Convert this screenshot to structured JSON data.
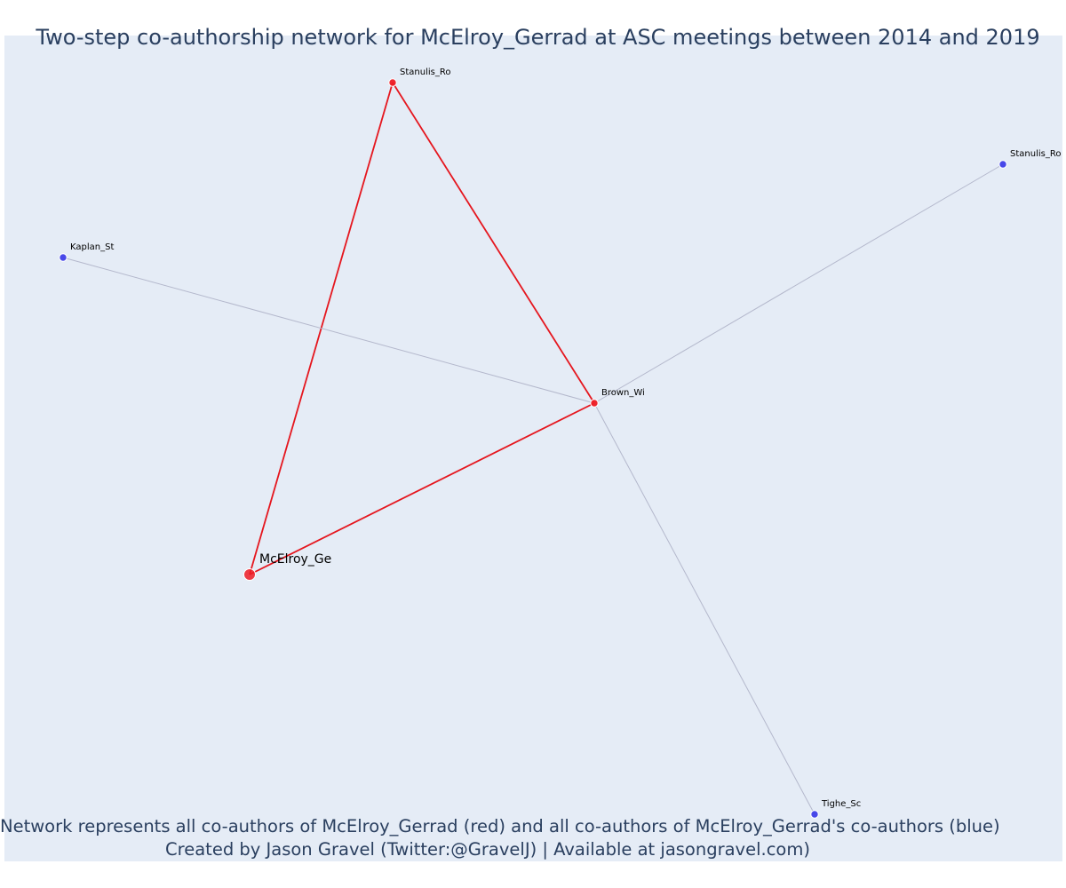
{
  "title": "Two-step co-authorship network for McElroy_Gerrad at ASC meetings between 2014 and 2019",
  "caption": {
    "line1": "Network represents all co-authors of McElroy_Gerrad (red) and all co-authors of McElroy_Gerrad's co-authors (blue)",
    "line2": "Created by Jason Gravel (Twitter:@GravelJ) | Available at jasongravel.com)"
  },
  "colors": {
    "background": "#e5ecf6",
    "first_degree": "#ee1c24",
    "second_degree": "#3f3fe8",
    "first_degree_edge": "#e5161e",
    "second_degree_edge": "#b4b8cc",
    "text": "#2a3f5f"
  },
  "nodes": [
    {
      "id": "mcelroy",
      "label": "McElroy_Ge",
      "group": "focal"
    },
    {
      "id": "stanulis_1",
      "label": "Stanulis_Ro",
      "group": "first_degree"
    },
    {
      "id": "brown",
      "label": "Brown_Wi",
      "group": "first_degree"
    },
    {
      "id": "kaplan",
      "label": "Kaplan_St",
      "group": "second_degree"
    },
    {
      "id": "stanulis_2",
      "label": "Stanulis_Ro",
      "group": "second_degree"
    },
    {
      "id": "tighe",
      "label": "Tighe_Sc",
      "group": "second_degree"
    }
  ],
  "edges": [
    {
      "source": "mcelroy",
      "target": "stanulis_1",
      "type": "first_degree"
    },
    {
      "source": "mcelroy",
      "target": "brown",
      "type": "first_degree"
    },
    {
      "source": "stanulis_1",
      "target": "brown",
      "type": "first_degree"
    },
    {
      "source": "brown",
      "target": "kaplan",
      "type": "second_degree"
    },
    {
      "source": "brown",
      "target": "stanulis_2",
      "type": "second_degree"
    },
    {
      "source": "brown",
      "target": "tighe",
      "type": "second_degree"
    }
  ]
}
